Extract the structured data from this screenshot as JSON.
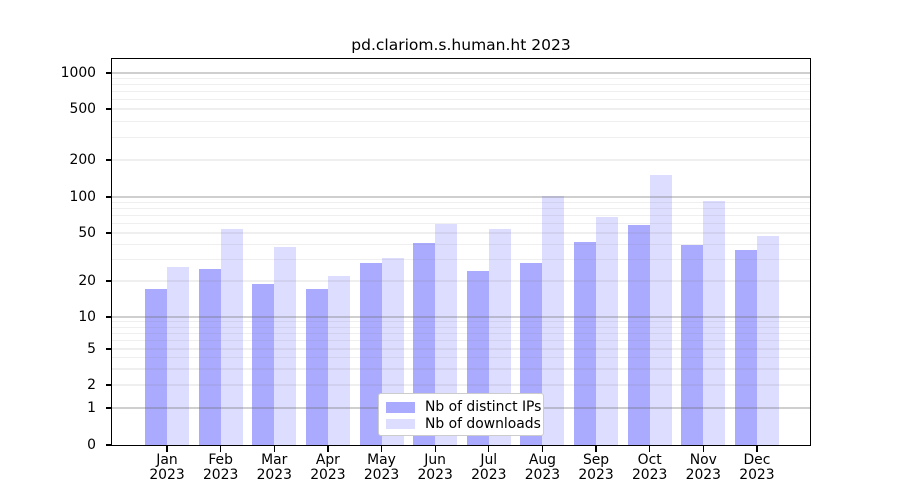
{
  "title": "pd.clariom.s.human.ht 2023",
  "chart_data": {
    "type": "bar",
    "title": "pd.clariom.s.human.ht 2023",
    "categories": [
      "Jan 2023",
      "Feb 2023",
      "Mar 2023",
      "Apr 2023",
      "May 2023",
      "Jun 2023",
      "Jul 2023",
      "Aug 2023",
      "Sep 2023",
      "Oct 2023",
      "Nov 2023",
      "Dec 2023"
    ],
    "x_tick_months": [
      "Jan",
      "Feb",
      "Mar",
      "Apr",
      "May",
      "Jun",
      "Jul",
      "Aug",
      "Sep",
      "Oct",
      "Nov",
      "Dec"
    ],
    "x_tick_year": "2023",
    "series": [
      {
        "name": "Nb of distinct IPs",
        "color": "#aaaaff",
        "values": [
          17,
          25,
          19,
          17,
          28,
          41,
          24,
          28,
          42,
          58,
          40,
          36
        ]
      },
      {
        "name": "Nb of downloads",
        "color": "#ddddff",
        "values": [
          26,
          54,
          38,
          22,
          31,
          60,
          54,
          102,
          68,
          150,
          92,
          47
        ]
      }
    ],
    "y_ticks": [
      0,
      1,
      2,
      5,
      10,
      20,
      50,
      100,
      200,
      500,
      1000
    ],
    "y_scale": "log-like (0,1,2,5,10,20,50,100,200,500,1000)",
    "ylim": [
      0,
      1400
    ],
    "xlabel": "",
    "ylabel": "",
    "grid": true,
    "legend_position": "lower center",
    "legend_entries": [
      "Nb of distinct IPs",
      "Nb of downloads"
    ]
  },
  "colors": {
    "background": "#ffffff",
    "axis": "#000000",
    "major_grid": "#c6c6c6",
    "minor_grid": "#ededed",
    "bar_distinct_ips": "#aaaaff",
    "bar_downloads": "#ddddff",
    "legend_border": "#cccccc"
  }
}
